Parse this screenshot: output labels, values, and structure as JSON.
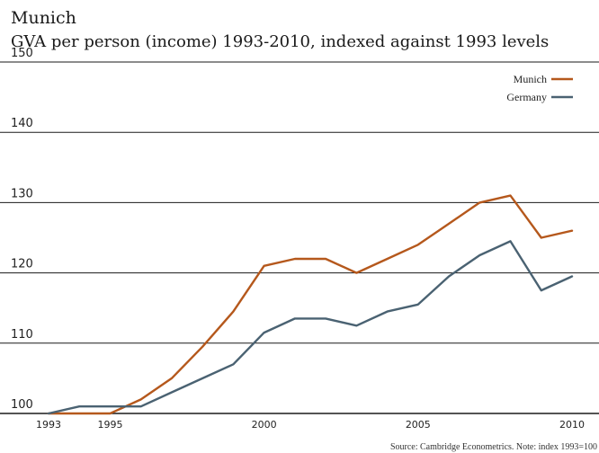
{
  "chart_data": {
    "type": "line",
    "title": "Munich",
    "subtitle": "GVA per person (income) 1993-2010, indexed against 1993 levels",
    "source": "Source: Cambridge Econometrics. Note: index 1993=100",
    "x": [
      1993,
      1994,
      1995,
      1996,
      1997,
      1998,
      1999,
      2000,
      2001,
      2002,
      2003,
      2004,
      2005,
      2006,
      2007,
      2008,
      2009,
      2010
    ],
    "ylim": [
      100,
      150
    ],
    "yticks": [
      150,
      140,
      130,
      120,
      110,
      100
    ],
    "xticks": [
      1993,
      1995,
      2000,
      2005,
      2010
    ],
    "legend_position": "top-right",
    "grid": "horizontal",
    "series": [
      {
        "name": "Munich",
        "color": "#b5581c",
        "values": [
          100,
          100,
          100,
          102,
          105,
          109.5,
          114.5,
          121,
          122,
          122,
          120,
          122,
          124,
          127,
          130,
          131,
          125,
          126
        ]
      },
      {
        "name": "Germany",
        "color": "#4a6272",
        "values": [
          100,
          101,
          101,
          101,
          103,
          105,
          107,
          111.5,
          113.5,
          113.5,
          112.5,
          114.5,
          115.5,
          119.5,
          122.5,
          124.5,
          117.5,
          119.5
        ]
      }
    ]
  }
}
